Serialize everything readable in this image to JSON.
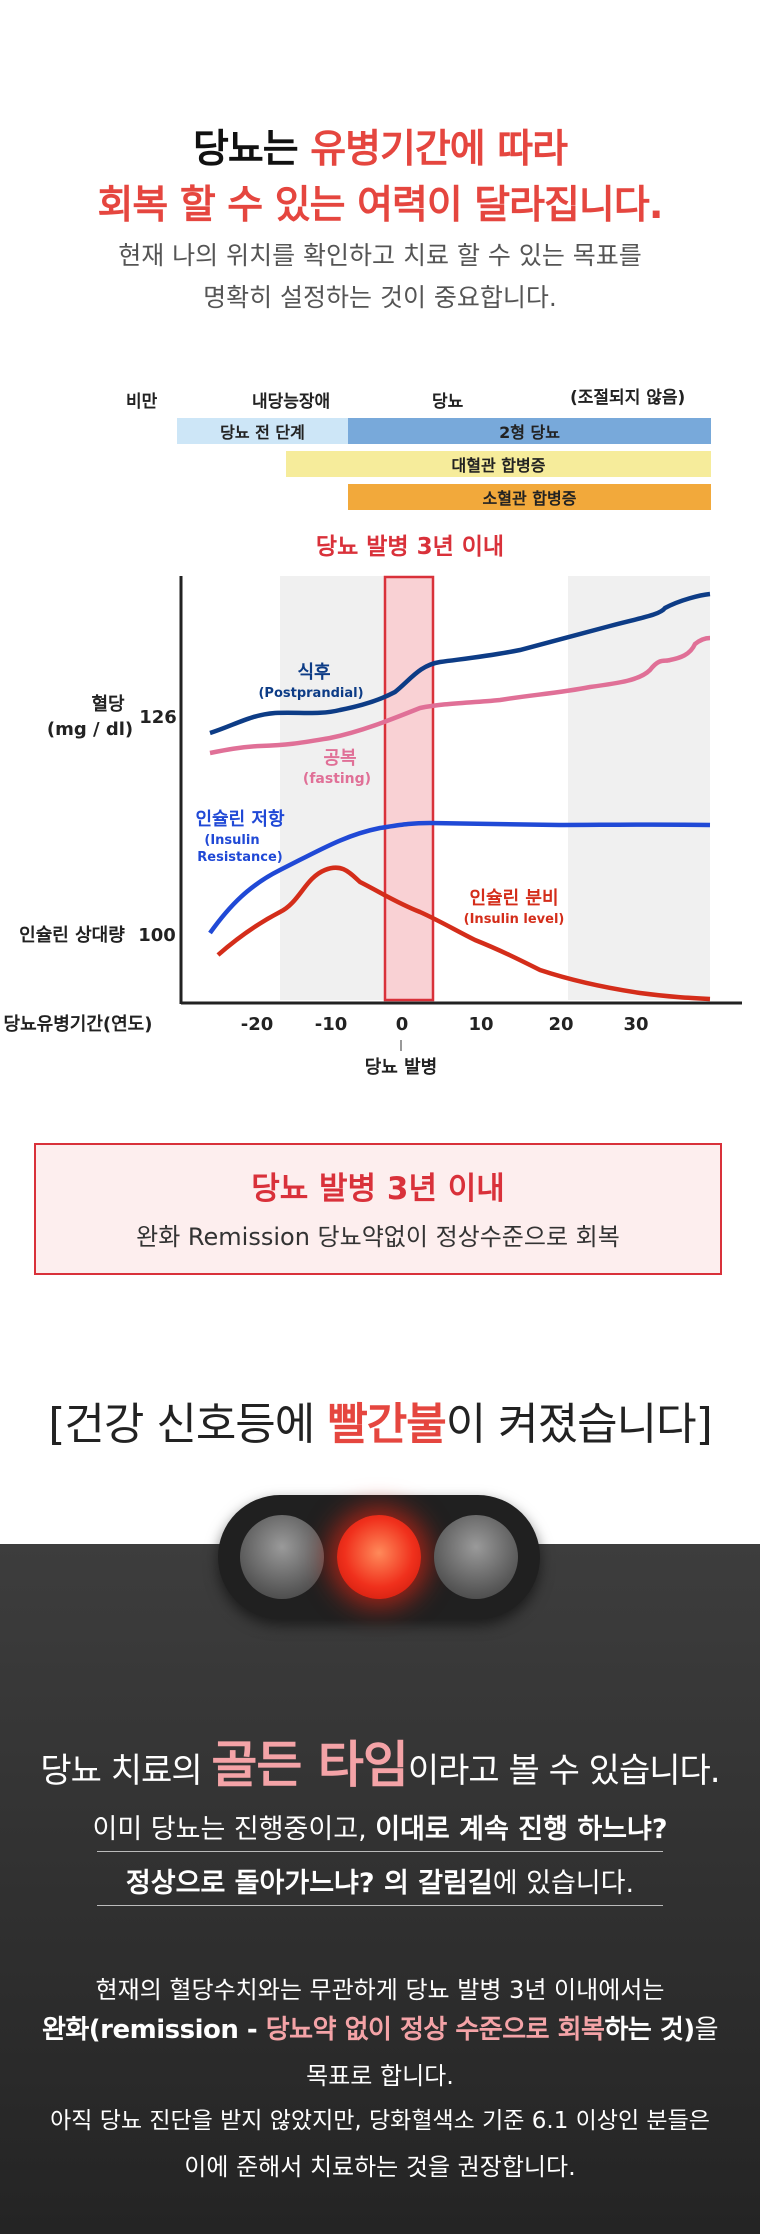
{
  "header": {
    "title_line1_black": "당뇨는 ",
    "title_line1_red": "유병기간에 따라",
    "title_line2": "회복 할 수 있는 여력이 달라집니다.",
    "subtitle_line1": "현재 나의 위치를 확인하고 치료 할 수 있는 목표를",
    "subtitle_line2": "명확히 설정하는 것이 중요합니다."
  },
  "stages": {
    "labels": [
      "비만",
      "내당능장애",
      "당뇨",
      "(조절되지 않음)"
    ],
    "bars": [
      {
        "label": "당뇨 전 단계",
        "color": "#cde6f7"
      },
      {
        "label": "2형 당뇨",
        "color": "#78a9da"
      },
      {
        "label": "대혈관 합병증",
        "color": "#f6ec9b"
      },
      {
        "label": "소혈관 합병증",
        "color": "#f2a93b"
      }
    ]
  },
  "chart": {
    "highlight_title": "당뇨 발병 3년 이내",
    "ylabel_top_line1": "혈당",
    "ylabel_top_line2": "(mg / dl)",
    "y_tick_top": "126",
    "ylabel_bottom": "인슐린 상대량",
    "y_tick_bottom": "100",
    "xlabel": "당뇨유병기간(연도)",
    "x_ticks": [
      "-20",
      "-10",
      "0",
      "10",
      "20",
      "30"
    ],
    "onset_label": "당뇨 발병",
    "series": [
      {
        "name": "식후",
        "sub": "(Postprandial)",
        "color": "#0d3c86"
      },
      {
        "name": "공복",
        "sub": "(fasting)",
        "color": "#e07097"
      },
      {
        "name": "인슐린 저항",
        "sub": "(Insulin Resistance)",
        "sub1": "(Insulin",
        "sub2": "Resistance)",
        "color": "#2049d6"
      },
      {
        "name": "인슐린 분비",
        "sub": "(Insulin level)",
        "color": "#d42d1a"
      }
    ]
  },
  "callout": {
    "title": "당뇨 발병 3년 이내",
    "text": "완화 Remission 당뇨약없이 정상수준으로 회복"
  },
  "signal": {
    "heading_pre": "[건강 신호등에 ",
    "heading_hl": "빨간불",
    "heading_post": "이 켜졌습니다]"
  },
  "dark_section": {
    "golden_pre": "당뇨 치료의 ",
    "golden_hl": "골든 타임",
    "golden_post": "이라고 볼 수 있습니다.",
    "line2_pre": "이미 당뇨는 진행중이고, ",
    "line2_bold": "이대로 계속 진행 하느냐?",
    "line3_bold": "정상으로 돌아가느냐? 의 갈림길",
    "line3_post": "에 있습니다.",
    "p1": "현재의 혈당수치와는 무관하게 당뇨 발병 3년 이내에서는",
    "p2_bold1": "완화(remission - ",
    "p2_pink": "당뇨약 없이 정상 수준으로 회복",
    "p2_bold2": "하는 것)",
    "p2_post": "을",
    "p3": "목표로 합니다.",
    "p4": "아직 당뇨 진단을 받지 않았지만, 당화혈색소 기준 6.1 이상인 분들은",
    "p5": "이에 준해서 치료하는 것을 권장합니다."
  }
}
